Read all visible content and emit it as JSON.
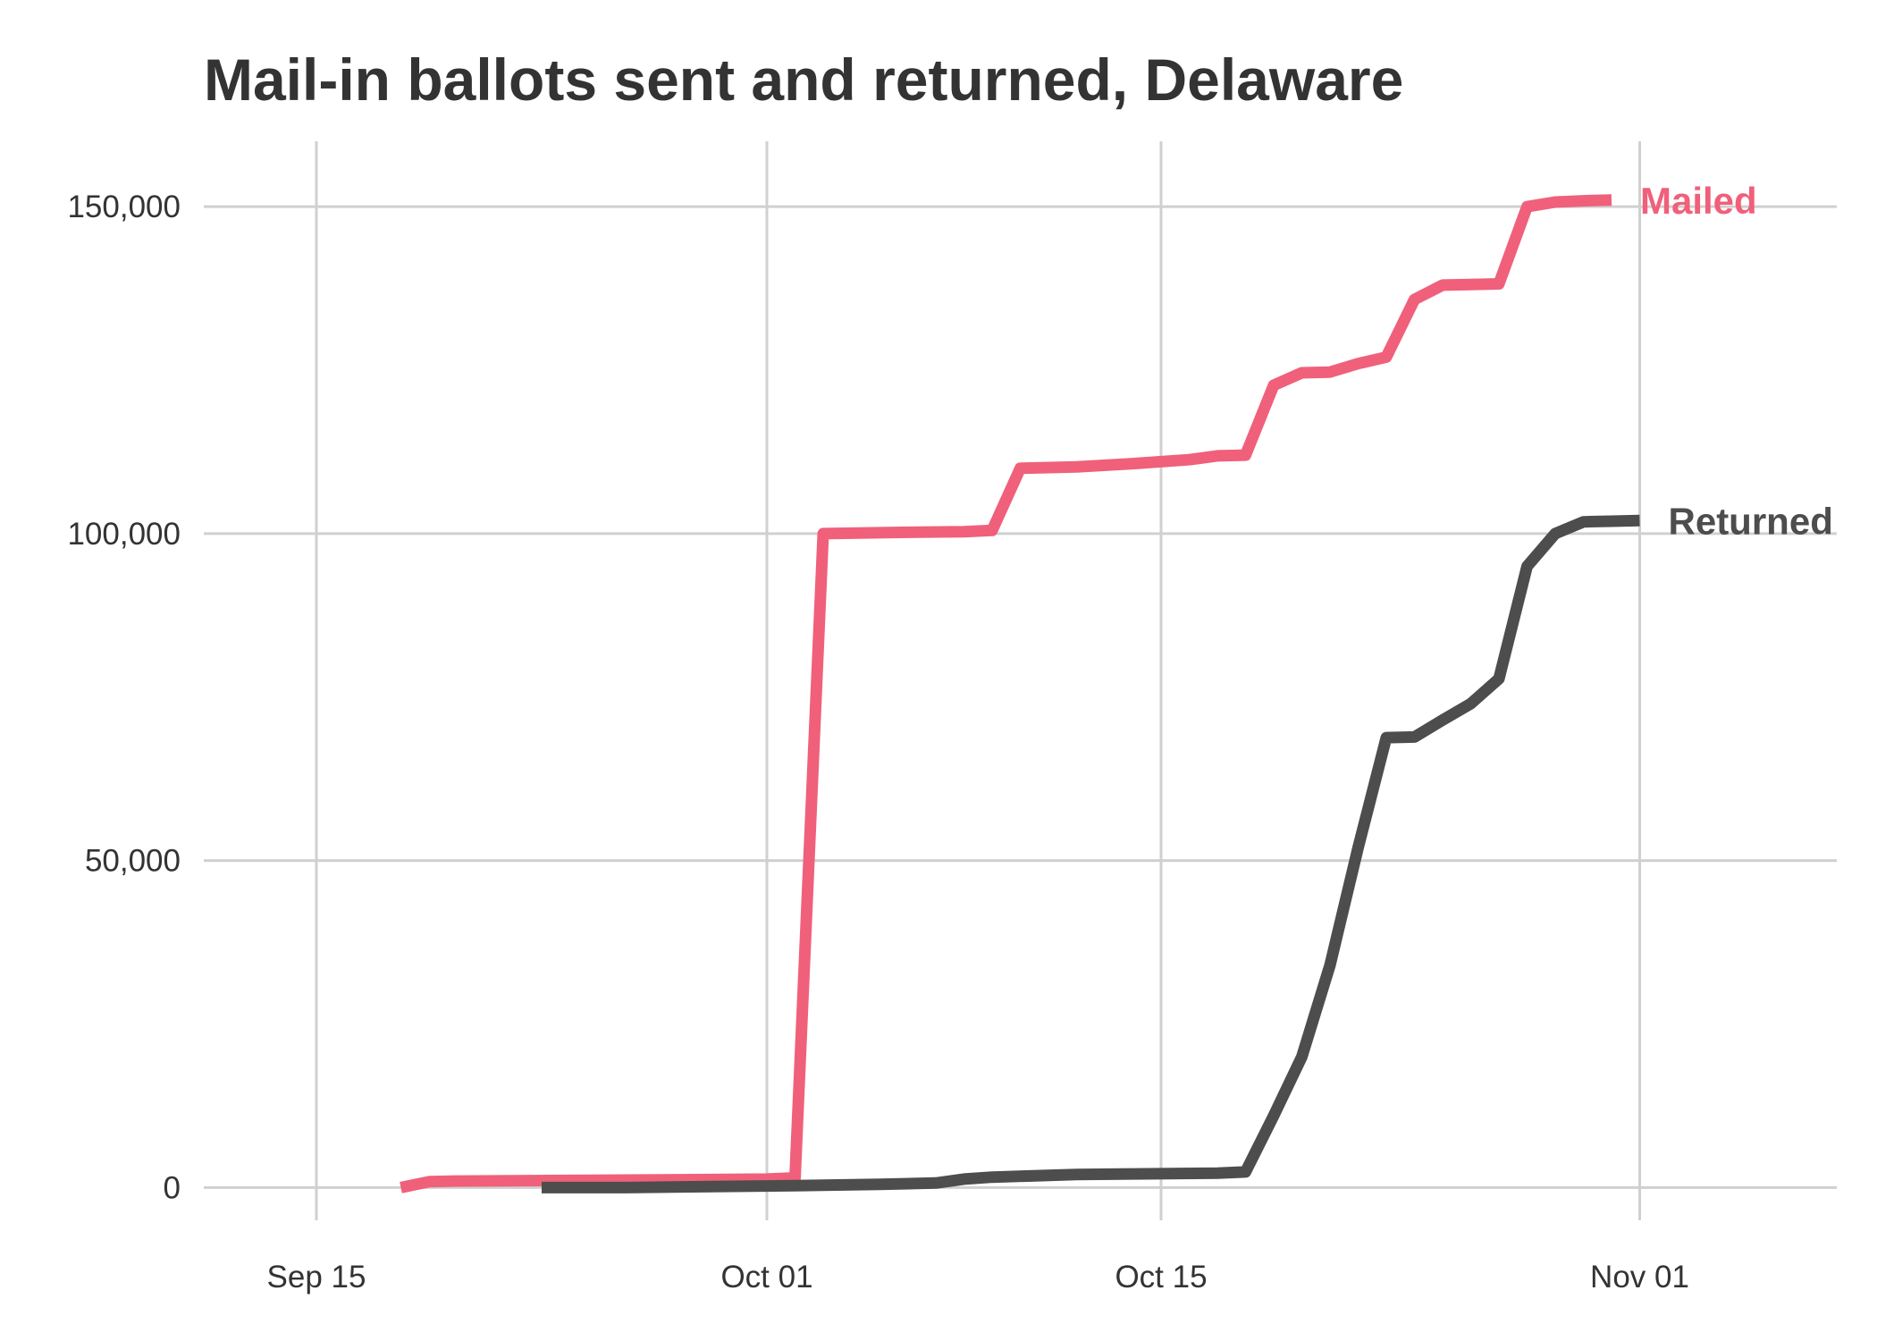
{
  "chart_data": {
    "type": "line",
    "title": "Mail-in ballots sent and returned, Delaware",
    "xlabel": "",
    "ylabel": "",
    "x_axis": {
      "type": "date",
      "range": [
        "2020-09-11",
        "2020-11-08"
      ],
      "ticks": [
        {
          "date": "2020-09-15",
          "label": "Sep 15"
        },
        {
          "date": "2020-10-01",
          "label": "Oct 01"
        },
        {
          "date": "2020-10-15",
          "label": "Oct 15"
        },
        {
          "date": "2020-11-01",
          "label": "Nov 01"
        }
      ]
    },
    "y_axis": {
      "range": [
        -5000,
        160000
      ],
      "ticks": [
        {
          "value": 0,
          "label": "0"
        },
        {
          "value": 50000,
          "label": "50,000"
        },
        {
          "value": 100000,
          "label": "100,000"
        },
        {
          "value": 150000,
          "label": "150,000"
        }
      ]
    },
    "grid": true,
    "legend": "direct labels at line ends",
    "series": [
      {
        "name": "Mailed",
        "color": "#f0607a",
        "points": [
          [
            "2020-09-18",
            0
          ],
          [
            "2020-09-19",
            900
          ],
          [
            "2020-09-20",
            1000
          ],
          [
            "2020-09-24",
            1100
          ],
          [
            "2020-09-28",
            1200
          ],
          [
            "2020-10-01",
            1300
          ],
          [
            "2020-10-02",
            1500
          ],
          [
            "2020-10-03",
            100000
          ],
          [
            "2020-10-06",
            100200
          ],
          [
            "2020-10-08",
            100300
          ],
          [
            "2020-10-09",
            100500
          ],
          [
            "2020-10-10",
            110000
          ],
          [
            "2020-10-12",
            110200
          ],
          [
            "2020-10-14",
            110700
          ],
          [
            "2020-10-16",
            111300
          ],
          [
            "2020-10-17",
            111900
          ],
          [
            "2020-10-18",
            112000
          ],
          [
            "2020-10-19",
            122700
          ],
          [
            "2020-10-20",
            124600
          ],
          [
            "2020-10-21",
            124700
          ],
          [
            "2020-10-22",
            126000
          ],
          [
            "2020-10-23",
            127000
          ],
          [
            "2020-10-24",
            135800
          ],
          [
            "2020-10-25",
            138000
          ],
          [
            "2020-10-26",
            138100
          ],
          [
            "2020-10-27",
            138200
          ],
          [
            "2020-10-28",
            150000
          ],
          [
            "2020-10-29",
            150700
          ],
          [
            "2020-10-30",
            150900
          ],
          [
            "2020-10-31",
            151000
          ]
        ]
      },
      {
        "name": "Returned",
        "color": "#4d4d4d",
        "points": [
          [
            "2020-09-23",
            0
          ],
          [
            "2020-09-26",
            0
          ],
          [
            "2020-10-02",
            300
          ],
          [
            "2020-10-05",
            500
          ],
          [
            "2020-10-07",
            700
          ],
          [
            "2020-10-08",
            1300
          ],
          [
            "2020-10-09",
            1600
          ],
          [
            "2020-10-12",
            2000
          ],
          [
            "2020-10-14",
            2100
          ],
          [
            "2020-10-17",
            2200
          ],
          [
            "2020-10-18",
            2400
          ],
          [
            "2020-10-19",
            11000
          ],
          [
            "2020-10-20",
            20000
          ],
          [
            "2020-10-21",
            34000
          ],
          [
            "2020-10-22",
            52000
          ],
          [
            "2020-10-23",
            68800
          ],
          [
            "2020-10-24",
            68900
          ],
          [
            "2020-10-25",
            71500
          ],
          [
            "2020-10-26",
            74000
          ],
          [
            "2020-10-27",
            77800
          ],
          [
            "2020-10-28",
            95000
          ],
          [
            "2020-10-29",
            100000
          ],
          [
            "2020-10-30",
            101800
          ],
          [
            "2020-10-31",
            101900
          ],
          [
            "2020-11-01",
            102000
          ]
        ]
      }
    ]
  }
}
